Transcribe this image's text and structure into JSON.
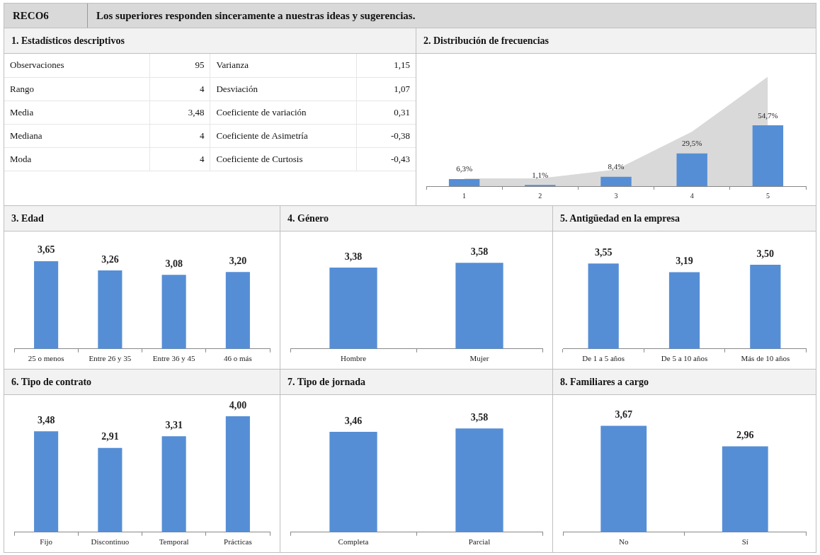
{
  "chart_data": [
    {
      "type": "other",
      "title": "Los superiores responden sinceramente a nuestras ideas y sugerencias.",
      "annotations": [
        "RECO6"
      ]
    },
    {
      "type": "other",
      "title": "1. Estadísticos descriptivos",
      "annotations": [
        "Observaciones",
        "95",
        "Varianza",
        "1,15",
        "Rango",
        "4",
        "Desviación",
        "1,07",
        "Media",
        "3,48",
        "Coeficiente de variación",
        "0,31",
        "Mediana",
        "4",
        "Coeficiente de Asimetría",
        "-0,38",
        "Moda",
        "4",
        "Coeficiente de Curtosis",
        "-0,43"
      ]
    },
    {
      "type": "bar",
      "title": "2. Distribución de frecuencias",
      "categories": [
        "1",
        "2",
        "3",
        "4",
        "5"
      ],
      "series": [
        {
          "type": "area",
          "color": "#d9d9d9",
          "values": [
            7,
            7,
            15,
            49,
            98.5
          ]
        },
        {
          "type": "bar",
          "color": "#558ed5",
          "values": [
            6.3,
            1.1,
            8.4,
            29.5,
            54.7
          ],
          "value_labels": [
            "6,3%",
            "1,1%",
            "8,4%",
            "29,5%",
            "54,7%"
          ]
        }
      ]
    },
    {
      "type": "bar",
      "title": "3. Edad",
      "categories": [
        "25 o menos",
        "Entre 26 y 35",
        "Entre 36 y 45",
        "46 o más"
      ],
      "series": [
        {
          "color": "#558ed5",
          "values": [
            3.65,
            3.26,
            3.08,
            3.2
          ],
          "value_labels": [
            "3,65",
            "3,26",
            "3,08",
            "3,20"
          ]
        }
      ]
    },
    {
      "type": "bar",
      "title": "4. Género",
      "categories": [
        "Hombre",
        "Mujer"
      ],
      "series": [
        {
          "color": "#558ed5",
          "values": [
            3.38,
            3.58
          ],
          "value_labels": [
            "3,38",
            "3,58"
          ]
        }
      ]
    },
    {
      "type": "bar",
      "title": "5. Antigüedad en la empresa",
      "categories": [
        "De 1 a 5 años",
        "De 5 a 10 años",
        "Más de 10 años"
      ],
      "series": [
        {
          "color": "#558ed5",
          "values": [
            3.55,
            3.19,
            3.5
          ],
          "value_labels": [
            "3,55",
            "3,19",
            "3,50"
          ]
        }
      ]
    },
    {
      "type": "bar",
      "title": "6. Tipo de contrato",
      "categories": [
        "Fijo",
        "Discontinuo",
        "Temporal",
        "Prácticas"
      ],
      "series": [
        {
          "color": "#558ed5",
          "values": [
            3.48,
            2.91,
            3.31,
            4.0
          ],
          "value_labels": [
            "3,48",
            "2,91",
            "3,31",
            "4,00"
          ]
        }
      ]
    },
    {
      "type": "bar",
      "title": "7. Tipo de jornada",
      "categories": [
        "Completa",
        "Parcial"
      ],
      "series": [
        {
          "color": "#558ed5",
          "values": [
            3.46,
            3.58
          ],
          "value_labels": [
            "3,46",
            "3,58"
          ]
        }
      ]
    },
    {
      "type": "bar",
      "title": "8. Familiares a cargo",
      "categories": [
        "No",
        "Sí"
      ],
      "series": [
        {
          "color": "#558ed5",
          "values": [
            3.67,
            2.96
          ],
          "value_labels": [
            "3,67",
            "2,96"
          ]
        }
      ]
    }
  ]
}
